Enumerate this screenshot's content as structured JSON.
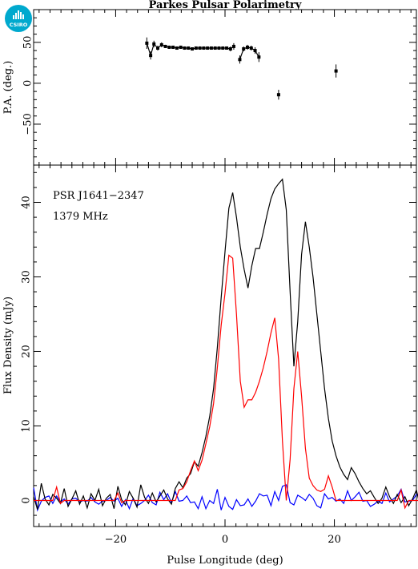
{
  "logo": {
    "text": "CSIRO",
    "color": "#00a9ce"
  },
  "chart_data": [
    {
      "panel": "position-angle",
      "type": "scatter",
      "title": "Parkes Pulsar Polarimetry",
      "ylabel": "P.A. (deg.)",
      "xlim": [
        -35,
        35
      ],
      "ylim": [
        -100,
        90
      ],
      "yticks": [
        50,
        0,
        -50
      ],
      "yticklabels": [
        "50",
        "0",
        "−50"
      ],
      "color": "#000000",
      "segments": [
        [
          {
            "x": -14.3,
            "y": 49,
            "err": 7
          },
          {
            "x": -13.6,
            "y": 34,
            "err": 5
          },
          {
            "x": -13.0,
            "y": 48,
            "err": 4
          },
          {
            "x": -12.3,
            "y": 43,
            "err": 3
          },
          {
            "x": -11.6,
            "y": 47,
            "err": 3
          },
          {
            "x": -10.9,
            "y": 45,
            "err": 2
          },
          {
            "x": -10.2,
            "y": 44,
            "err": 2
          },
          {
            "x": -9.5,
            "y": 44,
            "err": 2
          },
          {
            "x": -8.8,
            "y": 43,
            "err": 2
          },
          {
            "x": -8.1,
            "y": 44,
            "err": 2
          },
          {
            "x": -7.4,
            "y": 43,
            "err": 2
          },
          {
            "x": -6.7,
            "y": 43,
            "err": 2
          },
          {
            "x": -6.0,
            "y": 42,
            "err": 2
          },
          {
            "x": -5.3,
            "y": 43,
            "err": 2
          },
          {
            "x": -4.6,
            "y": 43,
            "err": 2
          },
          {
            "x": -3.9,
            "y": 43,
            "err": 2
          },
          {
            "x": -3.2,
            "y": 43,
            "err": 2
          },
          {
            "x": -2.5,
            "y": 43,
            "err": 2
          },
          {
            "x": -1.8,
            "y": 43,
            "err": 2
          },
          {
            "x": -1.1,
            "y": 43,
            "err": 2
          },
          {
            "x": -0.4,
            "y": 43,
            "err": 2
          },
          {
            "x": 0.3,
            "y": 43,
            "err": 2
          },
          {
            "x": 1.0,
            "y": 42,
            "err": 3
          },
          {
            "x": 1.6,
            "y": 45,
            "err": 4
          }
        ],
        [
          {
            "x": 2.7,
            "y": 29,
            "err": 5
          },
          {
            "x": 3.4,
            "y": 42,
            "err": 3
          },
          {
            "x": 4.1,
            "y": 44,
            "err": 3
          },
          {
            "x": 4.8,
            "y": 43,
            "err": 3
          },
          {
            "x": 5.5,
            "y": 40,
            "err": 4
          },
          {
            "x": 6.2,
            "y": 32,
            "err": 6
          }
        ]
      ],
      "isolated": [
        {
          "x": 9.8,
          "y": -14,
          "err": 6
        },
        {
          "x": 20.3,
          "y": 15,
          "err": 8
        }
      ]
    },
    {
      "panel": "profile",
      "type": "line",
      "xlabel": "Pulse Longitude (deg)",
      "ylabel": "Flux Density (mJy)",
      "xlim": [
        -35,
        35
      ],
      "ylim": [
        -3.5,
        45
      ],
      "xticks": [
        -20,
        0,
        20
      ],
      "xticklabels": [
        "−20",
        "0",
        "20"
      ],
      "yticks": [
        0,
        10,
        20,
        30,
        40
      ],
      "yticklabels": [
        "0",
        "10",
        "20",
        "30",
        "40"
      ],
      "annotations": [
        "PSR J1641−2347",
        "1379 MHz"
      ],
      "x_start": -35,
      "x_step": 0.7,
      "series": [
        {
          "key": "total",
          "color": "#000000",
          "values": [
            0.5,
            -1.2,
            2.3,
            0.2,
            -0.6,
            0.8,
            0.3,
            -0.4,
            1.6,
            -0.8,
            0.2,
            1.3,
            -0.5,
            0.6,
            -1.0,
            0.9,
            0.0,
            1.5,
            -0.7,
            0.3,
            0.8,
            -1.1,
            1.9,
            0.1,
            -0.6,
            1.2,
            0.3,
            -0.9,
            2.1,
            0.4,
            -0.4,
            1.0,
            -0.2,
            0.6,
            1.4,
            0.2,
            -0.5,
            1.6,
            2.5,
            1.7,
            3.0,
            3.6,
            5.2,
            4.6,
            6.4,
            8.6,
            11.3,
            15.0,
            20.5,
            27.2,
            33.4,
            39.2,
            41.3,
            38.0,
            34.0,
            31.0,
            28.5,
            31.5,
            33.8,
            33.8,
            36.0,
            38.4,
            40.5,
            41.8,
            42.5,
            43.1,
            39.0,
            28.0,
            18.0,
            24.0,
            33.0,
            37.4,
            34.0,
            30.0,
            25.0,
            20.0,
            15.0,
            11.0,
            8.0,
            6.0,
            4.5,
            3.5,
            2.8,
            4.4,
            3.6,
            2.5,
            1.6,
            0.9,
            1.3,
            0.4,
            -0.4,
            0.3,
            1.8,
            0.5,
            -0.4,
            0.8,
            -0.3,
            0.5,
            -0.7,
            0.2,
            1.4,
            -0.9,
            0.3,
            -2.5,
            1.3,
            -1.0,
            0.6,
            -0.6,
            1.0,
            0.2,
            0.1
          ]
        },
        {
          "key": "linear",
          "color": "#ff0000",
          "values": [
            0.0,
            0.0,
            0.0,
            0.0,
            0.0,
            0.0,
            1.8,
            -0.4,
            0.0,
            0.0,
            0.0,
            0.0,
            0.0,
            0.0,
            0.0,
            0.0,
            0.0,
            0.0,
            0.0,
            0.0,
            0.0,
            0.0,
            1.0,
            -0.3,
            0.0,
            0.0,
            0.0,
            0.0,
            0.0,
            0.0,
            0.0,
            0.0,
            0.0,
            0.0,
            0.0,
            0.0,
            0.0,
            0.0,
            1.4,
            1.6,
            2.5,
            4.0,
            5.3,
            4.0,
            5.4,
            7.6,
            9.9,
            13.0,
            17.8,
            23.5,
            27.8,
            32.9,
            32.5,
            25.0,
            16.0,
            12.5,
            13.5,
            13.5,
            14.5,
            16.0,
            17.8,
            20.0,
            22.5,
            24.5,
            19.0,
            8.0,
            0.0,
            5.5,
            15.0,
            20.0,
            14.0,
            7.0,
            3.0,
            2.0,
            1.4,
            1.2,
            1.5,
            3.3,
            1.8,
            0.0,
            0.0,
            0.0,
            0.0,
            0.0,
            0.0,
            0.0,
            0.0,
            0.0,
            0.0,
            0.0,
            0.0,
            0.0,
            0.0,
            0.0,
            0.0,
            0.0,
            1.4,
            -1.0,
            0.0,
            0.0,
            0.0,
            0.0,
            1.8,
            1.4,
            0.0,
            0.0,
            0.0,
            -0.5,
            0.2,
            0.0,
            0.0
          ]
        },
        {
          "key": "circular",
          "color": "#0000ff",
          "values": [
            1.7,
            -1.3,
            -0.1,
            0.4,
            0.6,
            -0.4,
            0.6,
            -0.2,
            0.2,
            -0.5,
            0.2,
            0.3,
            -0.2,
            0.0,
            -0.1,
            0.4,
            -0.2,
            -0.5,
            -0.1,
            0.0,
            0.4,
            -0.1,
            0.3,
            -0.8,
            0.1,
            -1.1,
            0.3,
            -0.7,
            -0.4,
            0.0,
            0.7,
            -0.3,
            -0.6,
            1.1,
            0.1,
            0.9,
            -0.3,
            1.2,
            -0.1,
            0.0,
            0.6,
            -0.3,
            -0.2,
            -1.1,
            0.5,
            -1.1,
            0.0,
            -0.4,
            1.5,
            -1.3,
            0.4,
            -0.8,
            -1.2,
            0.1,
            -0.7,
            -0.6,
            0.2,
            -0.8,
            -0.1,
            0.9,
            0.6,
            0.7,
            -0.7,
            1.2,
            0.0,
            1.9,
            2.1,
            -0.3,
            -0.6,
            0.7,
            0.4,
            0.0,
            0.8,
            0.3,
            -0.7,
            -1.0,
            0.9,
            0.2,
            0.4,
            -0.1,
            0.2,
            -0.4,
            1.3,
            0.0,
            0.5,
            1.1,
            -0.1,
            0.0,
            -0.8,
            -0.5,
            -0.1,
            -0.4,
            1.0,
            -0.2,
            0.2,
            0.6,
            1.5,
            -0.2,
            -0.1,
            0.0,
            0.8,
            0.8,
            -0.1,
            1.1,
            -0.3,
            0.3,
            1.3,
            -0.3,
            0.7,
            0.1,
            2.1
          ]
        }
      ]
    }
  ]
}
